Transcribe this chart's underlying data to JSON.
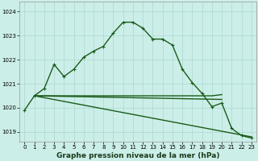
{
  "background_color": "#cceee8",
  "grid_color": "#aad8d0",
  "line_color": "#1a5c1a",
  "ylim": [
    1018.6,
    1024.4
  ],
  "xlim": [
    -0.5,
    23.5
  ],
  "yticks": [
    1019,
    1020,
    1021,
    1022,
    1023,
    1024
  ],
  "xticks": [
    0,
    1,
    2,
    3,
    4,
    5,
    6,
    7,
    8,
    9,
    10,
    11,
    12,
    13,
    14,
    15,
    16,
    17,
    18,
    19,
    20,
    21,
    22,
    23
  ],
  "xlabel": "Graphe pression niveau de la mer (hPa)",
  "xlabel_fontsize": 6.5,
  "tick_fontsize": 5.0,
  "line_width": 1.0,
  "marker_size": 3.5,
  "curve1_x": [
    0,
    1,
    2,
    3,
    4,
    5,
    6,
    7,
    8,
    9,
    10,
    11,
    12,
    13,
    14,
    15,
    16,
    17,
    18,
    19,
    20,
    21,
    22,
    23
  ],
  "curve1_y": [
    1019.9,
    1020.5,
    1020.8,
    1021.8,
    1021.3,
    1021.6,
    1022.1,
    1022.35,
    1022.55,
    1023.1,
    1023.55,
    1023.55,
    1023.3,
    1022.85,
    1022.85,
    1022.6,
    1021.6,
    1021.05,
    1020.6,
    1020.05,
    1020.2,
    1019.15,
    1018.85,
    1018.75
  ],
  "curve2_x": [
    1,
    2,
    3,
    4,
    5,
    6,
    7,
    8,
    9,
    10,
    11,
    12,
    13,
    14,
    15,
    16,
    17,
    18,
    19,
    20
  ],
  "curve2_y": [
    1020.5,
    1020.5,
    1020.5,
    1020.5,
    1020.5,
    1020.5,
    1020.5,
    1020.5,
    1020.5,
    1020.5,
    1020.5,
    1020.5,
    1020.5,
    1020.5,
    1020.5,
    1020.5,
    1020.5,
    1020.5,
    1020.5,
    1020.55
  ],
  "curve3_x": [
    1,
    20
  ],
  "curve3_y": [
    1020.5,
    1020.35
  ],
  "curve4_x": [
    1,
    23
  ],
  "curve4_y": [
    1020.5,
    1018.8
  ]
}
